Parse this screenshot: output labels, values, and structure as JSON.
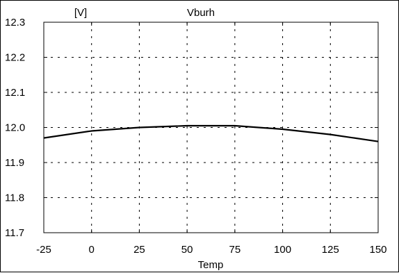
{
  "chart_data": {
    "type": "line",
    "title": "Vburh",
    "ylabel": "[V]",
    "xlabel": "Temp",
    "x": [
      -25,
      0,
      25,
      50,
      75,
      100,
      125,
      150
    ],
    "series": [
      {
        "values": [
          11.97,
          11.99,
          12.0,
          12.005,
          12.005,
          11.995,
          11.98,
          11.96
        ]
      }
    ],
    "xlim": [
      -25,
      150
    ],
    "ylim": [
      11.7,
      12.3
    ],
    "xticks": [
      "-25",
      "0",
      "25",
      "50",
      "75",
      "100",
      "125",
      "150"
    ],
    "yticks": [
      "11.7",
      "11.8",
      "11.9",
      "12.0",
      "12.1",
      "12.2",
      "12.3"
    ],
    "grid": true,
    "line_color": "#000000",
    "grid_color": "#000000"
  }
}
